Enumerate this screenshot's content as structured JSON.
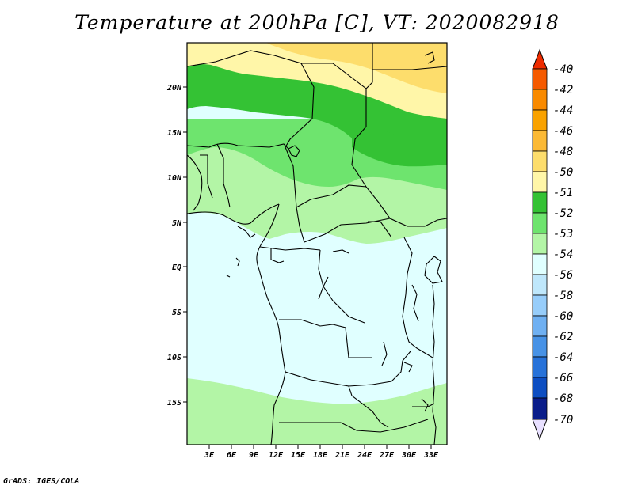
{
  "title": "Temperature at 200hPa [C], VT: 2020082918",
  "credit": "GrADS: IGES/COLA",
  "lat_labels": [
    "20N",
    "15N",
    "10N",
    "5N",
    "EQ",
    "5S",
    "10S",
    "15S"
  ],
  "lon_labels": [
    "3E",
    "6E",
    "9E",
    "12E",
    "15E",
    "18E",
    "21E",
    "24E",
    "27E",
    "30E",
    "33E"
  ],
  "colorbar": {
    "labels": [
      "-40",
      "-42",
      "-44",
      "-46",
      "-48",
      "-50",
      "-51",
      "-52",
      "-53",
      "-54",
      "-56",
      "-58",
      "-60",
      "-62",
      "-64",
      "-66",
      "-68",
      "-70"
    ],
    "colors": [
      "#ee2c00",
      "#f55a00",
      "#f98a00",
      "#f9a200",
      "#fbb935",
      "#fddd6c",
      "#fff6a8",
      "#34c234",
      "#6ee46e",
      "#b3f5a6",
      "#e0ffff",
      "#bfe7fb",
      "#97cdfa",
      "#6fb0f2",
      "#4792e6",
      "#2772d9",
      "#0d4ec2",
      "#0a1d8a",
      "#e8e0ff"
    ]
  }
}
